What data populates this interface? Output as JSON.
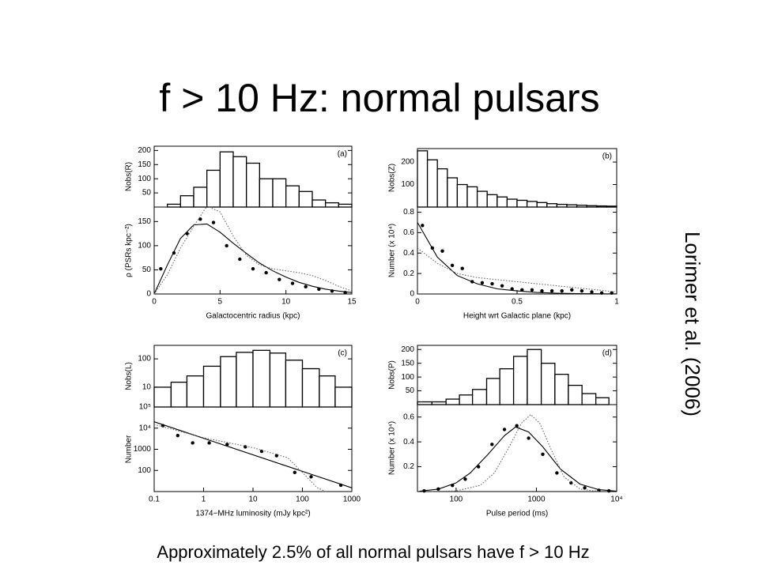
{
  "title": "f > 10 Hz: normal pulsars",
  "citation": "Lorimer et al. (2006)",
  "caption": "Approximately 2.5% of all normal pulsars have f > 10 Hz",
  "chart_data": [
    {
      "type": "histogram",
      "panel_label": "(a)",
      "ylabel": "Nobs(R)",
      "xlim": [
        0,
        15
      ],
      "ylim": [
        0,
        215
      ],
      "yticks": [
        50,
        100,
        150,
        200
      ],
      "bins": [
        1,
        2,
        3,
        4,
        5,
        6,
        7,
        8,
        9,
        10,
        11,
        12,
        13,
        14,
        15
      ],
      "values": [
        10,
        40,
        70,
        130,
        195,
        178,
        155,
        100,
        100,
        75,
        55,
        25,
        15,
        10
      ],
      "color": "#000000"
    },
    {
      "type": "scatter",
      "xlabel": "Galactocentric radius (kpc)",
      "ylabel": "ρ (PSRs kpc⁻²)",
      "xlim": [
        0,
        15
      ],
      "ylim": [
        0,
        180
      ],
      "xticks": [
        0,
        5,
        10,
        15
      ],
      "yticks": [
        0,
        50,
        100,
        150
      ],
      "series": [
        {
          "style": "markers",
          "color": "#000000",
          "x": [
            0.5,
            1.5,
            2.5,
            3.5,
            4.5,
            5.5,
            6.5,
            7.5,
            8.5,
            9.5,
            10.5,
            11.5,
            12.5,
            13.5,
            14.5
          ],
          "values": [
            52,
            85,
            125,
            155,
            148,
            100,
            72,
            52,
            44,
            30,
            22,
            15,
            10,
            6,
            3
          ]
        },
        {
          "style": "solid",
          "color": "#000000",
          "x": [
            0,
            1,
            2,
            3,
            4,
            5,
            6,
            7,
            8,
            9,
            10,
            11,
            12,
            13,
            14,
            15
          ],
          "values": [
            0,
            60,
            115,
            143,
            145,
            128,
            105,
            84,
            64,
            48,
            35,
            24,
            16,
            10,
            6,
            3
          ]
        },
        {
          "style": "dotted",
          "color": "#666666",
          "x": [
            0,
            1,
            2,
            3,
            4,
            5,
            6,
            7,
            8,
            9,
            10,
            11,
            12,
            13,
            14,
            15
          ],
          "values": [
            0,
            40,
            95,
            140,
            182,
            170,
            120,
            80,
            60,
            52,
            48,
            44,
            38,
            28,
            16,
            6
          ]
        }
      ]
    },
    {
      "type": "histogram",
      "panel_label": "(b)",
      "ylabel": "Nobs(Z)",
      "xlim": [
        0,
        1
      ],
      "ylim": [
        0,
        260
      ],
      "yticks": [
        100,
        200
      ],
      "bins": [
        0,
        0.05,
        0.1,
        0.15,
        0.2,
        0.25,
        0.3,
        0.35,
        0.4,
        0.45,
        0.5,
        0.55,
        0.6,
        0.65,
        0.7,
        0.75,
        0.8,
        0.85,
        0.9,
        0.95,
        1
      ],
      "values": [
        250,
        210,
        170,
        130,
        100,
        90,
        70,
        55,
        45,
        35,
        30,
        25,
        20,
        15,
        12,
        10,
        8,
        6,
        5,
        4
      ],
      "color": "#000000"
    },
    {
      "type": "scatter",
      "xlabel": "Height wrt Galactic plane (kpc)",
      "ylabel": "Number (x 10⁴)",
      "xlim": [
        0,
        1
      ],
      "ylim": [
        0,
        0.85
      ],
      "xticks": [
        0,
        0.5,
        1
      ],
      "yticks": [
        0,
        0.2,
        0.4,
        0.6,
        0.8
      ],
      "series": [
        {
          "style": "markers",
          "color": "#000000",
          "x": [
            0.025,
            0.075,
            0.125,
            0.175,
            0.225,
            0.275,
            0.325,
            0.375,
            0.425,
            0.475,
            0.525,
            0.575,
            0.625,
            0.675,
            0.725,
            0.775,
            0.825,
            0.875,
            0.925,
            0.975
          ],
          "values": [
            0.67,
            0.45,
            0.42,
            0.28,
            0.25,
            0.12,
            0.11,
            0.1,
            0.08,
            0.05,
            0.04,
            0.04,
            0.03,
            0.03,
            0.03,
            0.04,
            0.03,
            0.02,
            0.01,
            0.01
          ]
        },
        {
          "style": "solid",
          "color": "#000000",
          "x": [
            0,
            0.1,
            0.2,
            0.3,
            0.4,
            0.5,
            0.6,
            0.7,
            0.8,
            0.9,
            1
          ],
          "values": [
            0.7,
            0.36,
            0.18,
            0.1,
            0.05,
            0.03,
            0.015,
            0.008,
            0.004,
            0.002,
            0.001
          ]
        },
        {
          "style": "dotted",
          "color": "#666666",
          "x": [
            0,
            0.1,
            0.2,
            0.3,
            0.4,
            0.5,
            0.6,
            0.7,
            0.8,
            0.9,
            1
          ],
          "values": [
            0.45,
            0.3,
            0.2,
            0.16,
            0.14,
            0.12,
            0.1,
            0.08,
            0.06,
            0.04,
            0.02
          ]
        }
      ]
    },
    {
      "type": "histogram",
      "panel_label": "(c)",
      "ylabel": "Nobs(L)",
      "xscale": "log",
      "yscale": "log",
      "xlim": [
        0.1,
        1000
      ],
      "ylim": [
        2,
        300
      ],
      "yticks": [
        10,
        100
      ],
      "bins": [
        0.1,
        0.22,
        0.46,
        1,
        2.2,
        4.6,
        10,
        22,
        46,
        100,
        220,
        460,
        1000
      ],
      "values": [
        10,
        15,
        25,
        55,
        120,
        170,
        200,
        160,
        90,
        45,
        25,
        10
      ],
      "color": "#000000"
    },
    {
      "type": "scatter",
      "xlabel": "1374−MHz luminosity (mJy kpc²)",
      "ylabel": "Number",
      "xscale": "log",
      "yscale": "log",
      "xlim": [
        0.1,
        1000
      ],
      "ylim": [
        10,
        100000
      ],
      "xticks": [
        0.1,
        1,
        10,
        100,
        1000
      ],
      "yticks": [
        100,
        1000,
        {
          "value": 10000,
          "label": "10⁴"
        },
        {
          "value": 100000,
          "label": "10⁵"
        }
      ],
      "series": [
        {
          "style": "markers",
          "color": "#000000",
          "x": [
            0.15,
            0.3,
            0.6,
            1.3,
            3,
            7,
            15,
            30,
            70,
            150,
            600
          ],
          "values": [
            13000,
            4500,
            2000,
            2000,
            1700,
            1300,
            800,
            500,
            80,
            50,
            20
          ]
        },
        {
          "style": "solid",
          "color": "#000000",
          "x": [
            0.1,
            1000
          ],
          "values": [
            20000,
            15
          ]
        },
        {
          "style": "dotted",
          "color": "#666666",
          "x": [
            0.1,
            1,
            10,
            50,
            100,
            200,
            300
          ],
          "values": [
            15000,
            3500,
            1200,
            400,
            80,
            15,
            10
          ]
        }
      ]
    },
    {
      "type": "histogram",
      "panel_label": "(d)",
      "ylabel": "Nobs(P)",
      "xscale": "log",
      "xlim": [
        33,
        10000
      ],
      "ylim": [
        0,
        215
      ],
      "yticks": [
        50,
        100,
        150,
        200
      ],
      "bins": [
        33,
        50,
        75,
        110,
        160,
        240,
        350,
        520,
        770,
        1150,
        1700,
        2500,
        3700,
        5500,
        8000
      ],
      "values": [
        10,
        10,
        20,
        35,
        55,
        95,
        130,
        175,
        200,
        150,
        110,
        70,
        40,
        25
      ],
      "color": "#000000"
    },
    {
      "type": "scatter",
      "xlabel": "Pulse period (ms)",
      "ylabel": "Number (x 10⁴)",
      "xscale": "log",
      "xlim": [
        33,
        10000
      ],
      "ylim": [
        0,
        0.7
      ],
      "xticks": [
        100,
        1000,
        {
          "value": 10000,
          "label": "10⁴"
        }
      ],
      "yticks": [
        0.2,
        0.4,
        0.6
      ],
      "series": [
        {
          "style": "markers",
          "color": "#000000",
          "x": [
            40,
            60,
            90,
            130,
            190,
            280,
            400,
            570,
            800,
            1200,
            1800,
            2700,
            4000,
            6000,
            8000
          ],
          "values": [
            0.005,
            0.02,
            0.05,
            0.1,
            0.2,
            0.38,
            0.5,
            0.53,
            0.43,
            0.3,
            0.15,
            0.07,
            0.03,
            0.01,
            0.005
          ]
        },
        {
          "style": "solid",
          "color": "#000000",
          "x": [
            35,
            60,
            100,
            150,
            250,
            400,
            550,
            800,
            1200,
            2000,
            3500,
            6000,
            10000
          ],
          "values": [
            0.003,
            0.02,
            0.07,
            0.15,
            0.3,
            0.45,
            0.52,
            0.48,
            0.36,
            0.18,
            0.06,
            0.015,
            0.003
          ]
        },
        {
          "style": "dotted",
          "color": "#666666",
          "x": [
            50,
            100,
            200,
            300,
            450,
            650,
            850,
            1100,
            1500,
            2200,
            3500,
            6000
          ],
          "values": [
            0.001,
            0.005,
            0.05,
            0.15,
            0.35,
            0.55,
            0.62,
            0.55,
            0.35,
            0.12,
            0.02,
            0.001
          ]
        }
      ]
    }
  ]
}
